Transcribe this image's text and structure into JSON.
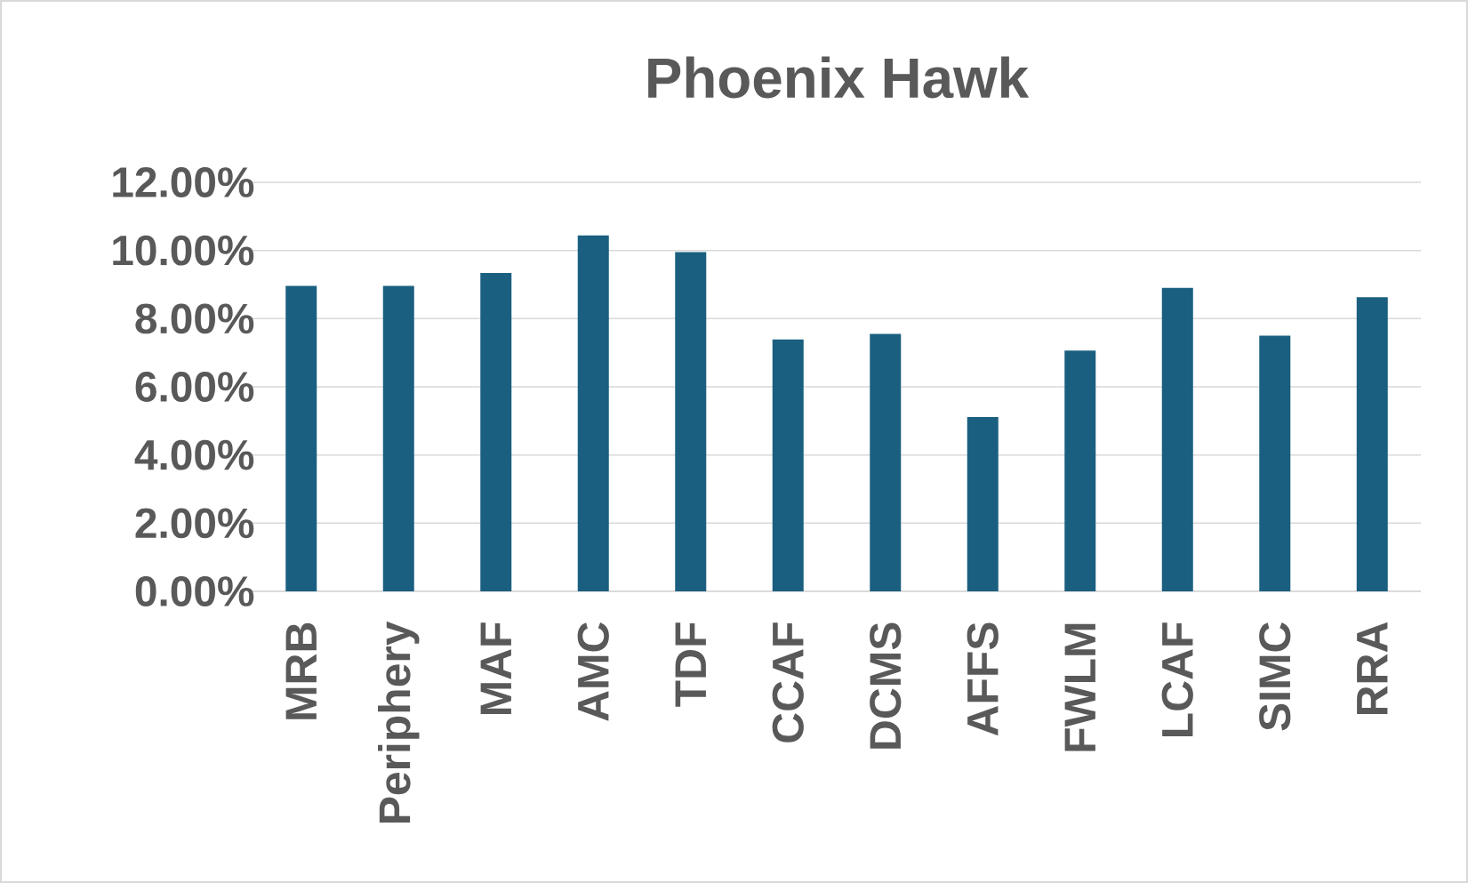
{
  "chart_data": {
    "type": "bar",
    "title": "Phoenix Hawk",
    "categories": [
      "MRB",
      "Periphery",
      "MAF",
      "AMC",
      "TDF",
      "CCAF",
      "DCMS",
      "AFFS",
      "FWLM",
      "LCAF",
      "SIMC",
      "RRA"
    ],
    "values": [
      8.96,
      8.96,
      9.34,
      10.44,
      9.95,
      7.39,
      7.55,
      5.11,
      7.06,
      8.9,
      7.5,
      8.63
    ],
    "color": "#1a5f80",
    "ylim": [
      0,
      12
    ],
    "yticks": [
      {
        "value": 0,
        "label": "0.00%"
      },
      {
        "value": 2,
        "label": "2.00%"
      },
      {
        "value": 4,
        "label": "4.00%"
      },
      {
        "value": 6,
        "label": "6.00%"
      },
      {
        "value": 8,
        "label": "8.00%"
      },
      {
        "value": 10,
        "label": "10.00%"
      },
      {
        "value": 12,
        "label": "12.00%"
      }
    ],
    "grid": "y"
  }
}
